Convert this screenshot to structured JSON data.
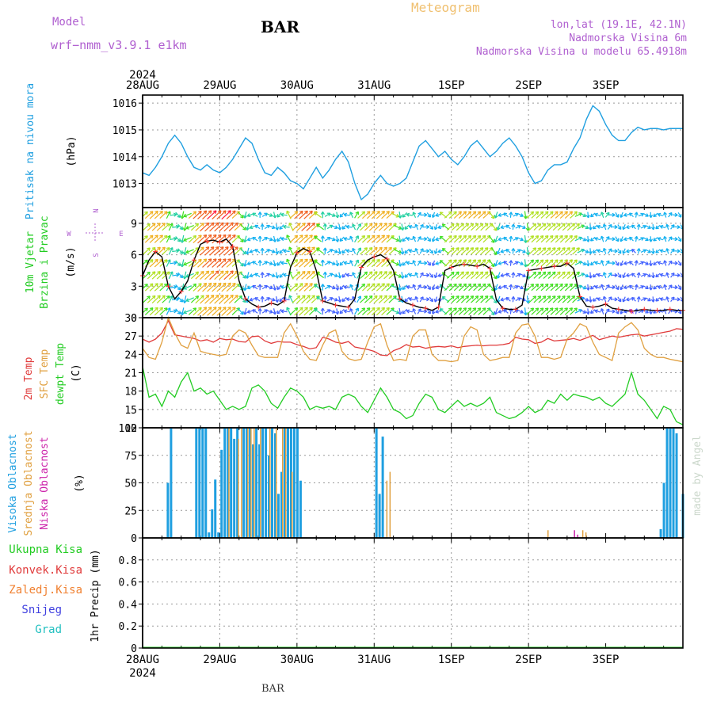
{
  "header": {
    "model_label": "Model",
    "model_name": "wrf−nmm_v3.9.1  e1km",
    "station": "BAR",
    "product": "Meteogram",
    "coords": "lon,lat (19.1E, 42.1N)",
    "altitude": "Nadmorska Visina 6m",
    "model_altitude": "Nadmorska Visina u modelu 65.4918m",
    "footer_station": "BAR",
    "credit": "made by Angel"
  },
  "colors": {
    "pressure": "#1f9fe0",
    "temp2m": "#e03a3a",
    "sfc_temp": "#e0a040",
    "dewpoint": "#22cc22",
    "high_cloud": "#1f9fe0",
    "mid_cloud": "#e0a040",
    "low_cloud": "#cc22aa",
    "model_purple": "#b060d0",
    "meteogram_orange": "#f0c070"
  },
  "time_axis": {
    "year": "2024",
    "labels": [
      "28AUG",
      "29AUG",
      "30AUG",
      "31AUG",
      "1SEP",
      "2SEP",
      "3SEP"
    ]
  },
  "chart_data": [
    {
      "type": "line",
      "panel": "pressure",
      "ylabel_main": "Pritisak na nivou mora",
      "ylabel_unit": "(hPa)",
      "ylim": [
        1012.1,
        1016.3
      ],
      "yticks": [
        1013,
        1014,
        1015,
        1016
      ],
      "x_hours": [
        0,
        2,
        4,
        6,
        8,
        10,
        12,
        14,
        16,
        18,
        20,
        22,
        24,
        26,
        28,
        30,
        32,
        34,
        36,
        38,
        40,
        42,
        44,
        46,
        48,
        50,
        52,
        54,
        56,
        58,
        60,
        62,
        64,
        66,
        68,
        70,
        72,
        74,
        76,
        78,
        80,
        82,
        84,
        86,
        88,
        90,
        92,
        94,
        96,
        98,
        100,
        102,
        104,
        106,
        108,
        110,
        112,
        114,
        116,
        118,
        120,
        122,
        124,
        126,
        128,
        130,
        132,
        134,
        136,
        138,
        140,
        142,
        144,
        146,
        148,
        150,
        152,
        154,
        156,
        158,
        160,
        162,
        164,
        166,
        168
      ],
      "series": [
        {
          "values": [
            1013.4,
            1013.3,
            1013.6,
            1014.0,
            1014.5,
            1014.8,
            1014.5,
            1014.0,
            1013.6,
            1013.5,
            1013.7,
            1013.5,
            1013.4,
            1013.6,
            1013.9,
            1014.3,
            1014.7,
            1014.5,
            1013.9,
            1013.4,
            1013.3,
            1013.6,
            1013.4,
            1013.1,
            1013.0,
            1012.8,
            1013.2,
            1013.6,
            1013.2,
            1013.5,
            1013.9,
            1014.2,
            1013.8,
            1013.0,
            1012.4,
            1012.6,
            1013.0,
            1013.3,
            1013.0,
            1012.9,
            1013.0,
            1013.2,
            1013.8,
            1014.4,
            1014.6,
            1014.3,
            1014.0,
            1014.2,
            1013.9,
            1013.7,
            1014.0,
            1014.4,
            1014.6,
            1014.3,
            1014.0,
            1014.2,
            1014.5,
            1014.7,
            1014.4,
            1014.0,
            1013.4,
            1013.0,
            1013.1,
            1013.5,
            1013.7,
            1013.7,
            1013.8,
            1014.3,
            1014.7,
            1015.4,
            1015.9,
            1015.7,
            1015.2,
            1014.8,
            1014.6,
            1014.6,
            1014.9,
            1015.1,
            1015.0,
            1015.05,
            1015.05,
            1015.0,
            1015.05,
            1015.05,
            1015.05
          ]
        }
      ]
    },
    {
      "type": "line",
      "panel": "wind",
      "ylabel_main": "10m Vjetar",
      "ylabel_sub": "Brzina i Pravac",
      "ylabel_unit": "(m/s)",
      "compass": {
        "n": "N",
        "s": "S",
        "e": "E",
        "w": "W"
      },
      "ylim": [
        0,
        10.5
      ],
      "yticks": [
        0,
        3,
        6,
        9
      ],
      "x_hours": [
        0,
        2,
        4,
        6,
        8,
        10,
        12,
        14,
        16,
        18,
        20,
        22,
        24,
        26,
        28,
        30,
        32,
        34,
        36,
        38,
        40,
        42,
        44,
        46,
        48,
        50,
        52,
        54,
        56,
        58,
        60,
        62,
        64,
        66,
        68,
        70,
        72,
        74,
        76,
        78,
        80,
        82,
        84,
        86,
        88,
        90,
        92,
        94,
        96,
        98,
        100,
        102,
        104,
        106,
        108,
        110,
        112,
        114,
        116,
        118,
        120,
        122,
        124,
        126,
        128,
        130,
        132,
        134,
        136,
        138,
        140,
        142,
        144,
        146,
        148,
        150,
        152,
        154,
        156,
        158,
        160,
        162,
        164,
        166,
        168
      ],
      "series": [
        {
          "name": "speed",
          "values": [
            4.0,
            5.5,
            6.3,
            5.8,
            3.0,
            1.8,
            2.5,
            3.5,
            5.5,
            7.0,
            7.3,
            7.4,
            7.2,
            7.5,
            6.8,
            3.5,
            1.8,
            1.3,
            1.0,
            1.1,
            1.4,
            1.2,
            1.6,
            4.8,
            6.2,
            6.6,
            6.3,
            4.5,
            1.6,
            1.4,
            1.2,
            1.1,
            1.0,
            1.8,
            4.8,
            5.5,
            5.8,
            6.0,
            5.6,
            4.5,
            1.8,
            1.4,
            1.2,
            1.0,
            0.9,
            0.7,
            1.0,
            4.5,
            4.8,
            5.0,
            5.1,
            5.0,
            4.9,
            5.1,
            4.7,
            1.7,
            0.9,
            0.8,
            0.8,
            1.2,
            4.5,
            4.6,
            4.7,
            4.8,
            4.9,
            4.9,
            5.2,
            4.7,
            2.0,
            1.1,
            1.0,
            1.1,
            1.3,
            0.9,
            0.8,
            0.7,
            0.6,
            0.7,
            0.8,
            0.7,
            0.7,
            0.7,
            0.8,
            0.7,
            0.7
          ]
        }
      ]
    },
    {
      "type": "line",
      "panel": "temperature",
      "ylabel_lines": [
        "2m Temp",
        "SFC Temp",
        "dewpt Temp"
      ],
      "ylabel_unit": "(C)",
      "ylim": [
        12,
        30
      ],
      "yticks": [
        12,
        15,
        18,
        21,
        24,
        27,
        30
      ],
      "x_hours": [
        0,
        2,
        4,
        6,
        8,
        10,
        12,
        14,
        16,
        18,
        20,
        22,
        24,
        26,
        28,
        30,
        32,
        34,
        36,
        38,
        40,
        42,
        44,
        46,
        48,
        50,
        52,
        54,
        56,
        58,
        60,
        62,
        64,
        66,
        68,
        70,
        72,
        74,
        76,
        78,
        80,
        82,
        84,
        86,
        88,
        90,
        92,
        94,
        96,
        98,
        100,
        102,
        104,
        106,
        108,
        110,
        112,
        114,
        116,
        118,
        120,
        122,
        124,
        126,
        128,
        130,
        132,
        134,
        136,
        138,
        140,
        142,
        144,
        146,
        148,
        150,
        152,
        154,
        156,
        158,
        160,
        162,
        164,
        166,
        168
      ],
      "series": [
        {
          "name": "2m Temp",
          "values": [
            26.5,
            26.0,
            26.5,
            27.5,
            29.5,
            27.2,
            27.0,
            26.8,
            26.6,
            26.2,
            26.4,
            26.0,
            26.6,
            26.4,
            26.5,
            26.1,
            26.0,
            26.9,
            27.0,
            26.2,
            25.8,
            26.1,
            26.0,
            26.0,
            25.6,
            25.3,
            24.9,
            25.1,
            26.8,
            26.5,
            26.0,
            25.8,
            26.1,
            25.2,
            25.0,
            24.8,
            24.5,
            23.9,
            23.8,
            24.6,
            25.0,
            25.6,
            25.2,
            25.3,
            25.0,
            25.2,
            25.3,
            25.2,
            25.4,
            25.1,
            25.3,
            25.4,
            25.5,
            25.4,
            25.5,
            25.5,
            25.6,
            25.8,
            26.8,
            26.5,
            26.4,
            25.8,
            26.0,
            26.6,
            26.2,
            26.3,
            26.4,
            26.6,
            26.3,
            26.7,
            27.1,
            26.4,
            26.7,
            27.0,
            26.8,
            27.0,
            27.2,
            27.3,
            27.0,
            27.2,
            27.4,
            27.6,
            27.8,
            28.2,
            28.1
          ]
        },
        {
          "name": "SFC Temp",
          "values": [
            25.0,
            23.5,
            23.2,
            26.0,
            30.0,
            27.5,
            25.5,
            25.0,
            27.5,
            24.5,
            24.2,
            24.0,
            23.8,
            24.0,
            27.0,
            28.0,
            27.5,
            25.5,
            23.8,
            23.5,
            23.5,
            23.5,
            27.5,
            29.0,
            27.0,
            24.5,
            23.2,
            23.0,
            25.5,
            27.5,
            28.0,
            24.5,
            23.3,
            23.0,
            23.2,
            26.0,
            28.5,
            29.0,
            25.5,
            23.0,
            23.2,
            23.0,
            27.0,
            28.0,
            28.0,
            24.0,
            23.0,
            23.0,
            22.8,
            23.0,
            27.0,
            28.5,
            28.0,
            24.0,
            23.0,
            23.2,
            23.5,
            23.5,
            27.5,
            28.8,
            29.0,
            27.0,
            23.5,
            23.5,
            23.2,
            23.5,
            26.5,
            27.5,
            29.0,
            28.5,
            26.0,
            24.0,
            23.5,
            23.0,
            27.5,
            28.5,
            29.2,
            28.0,
            25.0,
            24.0,
            23.5,
            23.5,
            23.2,
            23.0,
            22.8
          ]
        },
        {
          "name": "dewpt Temp",
          "values": [
            22.0,
            17.0,
            17.5,
            15.5,
            18.0,
            17.0,
            19.5,
            21.0,
            18.0,
            18.5,
            17.5,
            18.0,
            16.5,
            15.0,
            15.5,
            15.0,
            15.5,
            18.5,
            19.0,
            18.0,
            16.0,
            15.2,
            17.0,
            18.5,
            18.0,
            17.0,
            15.0,
            15.5,
            15.2,
            15.5,
            15.0,
            17.0,
            17.5,
            17.0,
            15.5,
            14.5,
            16.5,
            18.5,
            17.0,
            15.0,
            14.5,
            13.5,
            14.0,
            16.0,
            17.5,
            17.0,
            15.0,
            14.5,
            15.5,
            16.5,
            15.5,
            16.0,
            15.5,
            16.0,
            17.0,
            14.5,
            14.0,
            13.5,
            13.8,
            14.5,
            15.5,
            14.5,
            15.0,
            16.5,
            16.0,
            17.5,
            16.5,
            17.5,
            17.2,
            17.0,
            16.5,
            17.0,
            16.0,
            15.5,
            16.5,
            17.5,
            21.0,
            17.5,
            16.5,
            15.0,
            13.5,
            15.5,
            15.0,
            13.0,
            12.5
          ]
        }
      ]
    },
    {
      "type": "bar",
      "panel": "cloud",
      "ylabel_lines": [
        "Visoka Oblacnost",
        "Srednja Oblacnost",
        "Niska Oblacnost"
      ],
      "ylabel_unit": "(%)",
      "ylim": [
        0,
        100
      ],
      "yticks": [
        0,
        25,
        50,
        75,
        100
      ],
      "series": [
        {
          "name": "Visoka Oblacnost",
          "bars": [
            [
              8,
              50
            ],
            [
              9,
              100
            ],
            [
              17,
              100
            ],
            [
              18,
              100
            ],
            [
              19,
              100
            ],
            [
              20,
              100
            ],
            [
              21,
              5
            ],
            [
              22,
              26
            ],
            [
              23,
              53
            ],
            [
              24,
              5
            ],
            [
              25,
              80
            ],
            [
              26,
              100
            ],
            [
              27,
              100
            ],
            [
              28,
              100
            ],
            [
              29,
              90
            ],
            [
              30,
              100
            ],
            [
              32,
              100
            ],
            [
              33,
              100
            ],
            [
              34,
              100
            ],
            [
              35,
              85
            ],
            [
              36,
              100
            ],
            [
              37,
              85
            ],
            [
              38,
              100
            ],
            [
              39,
              100
            ],
            [
              40,
              75
            ],
            [
              41,
              100
            ],
            [
              42,
              95
            ],
            [
              43,
              40
            ],
            [
              44,
              60
            ],
            [
              45,
              100
            ],
            [
              46,
              100
            ],
            [
              47,
              100
            ],
            [
              48,
              100
            ],
            [
              49,
              100
            ],
            [
              50,
              52
            ],
            [
              74,
              100
            ],
            [
              75,
              40
            ],
            [
              76,
              92
            ],
            [
              164,
              8
            ],
            [
              165,
              50
            ],
            [
              166,
              100
            ],
            [
              167,
              100
            ],
            [
              168,
              100
            ],
            [
              169,
              95
            ],
            [
              171,
              40
            ]
          ]
        },
        {
          "name": "Srednja Oblacnost",
          "bars": [
            [
              27,
              100
            ],
            [
              30,
              90
            ],
            [
              31,
              100
            ],
            [
              33,
              100
            ],
            [
              34,
              100
            ],
            [
              35,
              100
            ],
            [
              37,
              100
            ],
            [
              40,
              100
            ],
            [
              42,
              100
            ],
            [
              44,
              100
            ],
            [
              45,
              100
            ],
            [
              47,
              60
            ],
            [
              77,
              52
            ],
            [
              78,
              60
            ],
            [
              128,
              7
            ],
            [
              139,
              7
            ],
            [
              140,
              5
            ]
          ]
        },
        {
          "name": "Niska Oblacnost",
          "bars": [
            [
              136,
              7
            ],
            [
              137,
              3
            ]
          ]
        }
      ]
    },
    {
      "type": "line",
      "panel": "precip",
      "ylabel_main": "1hr Precip",
      "ylabel_unit": "(mm)",
      "legend": [
        "Ukupna Kisa",
        "Konvek.Kisa",
        "Zaledj.Kisa",
        "Snijeg",
        "Grad"
      ],
      "legend_colors": [
        "#22cc22",
        "#e03a3a",
        "#f08030",
        "#4040e0",
        "#22c0c0"
      ],
      "ylim": [
        0,
        1
      ],
      "yticks": [
        0,
        0.2,
        0.4,
        0.6,
        0.8
      ],
      "ytick_labels": [
        "0",
        "0.2",
        "0.4",
        "0.6",
        "0.8"
      ],
      "series": [
        {
          "name": "Ukupna Kisa",
          "values": [
            0,
            0
          ]
        }
      ]
    }
  ]
}
